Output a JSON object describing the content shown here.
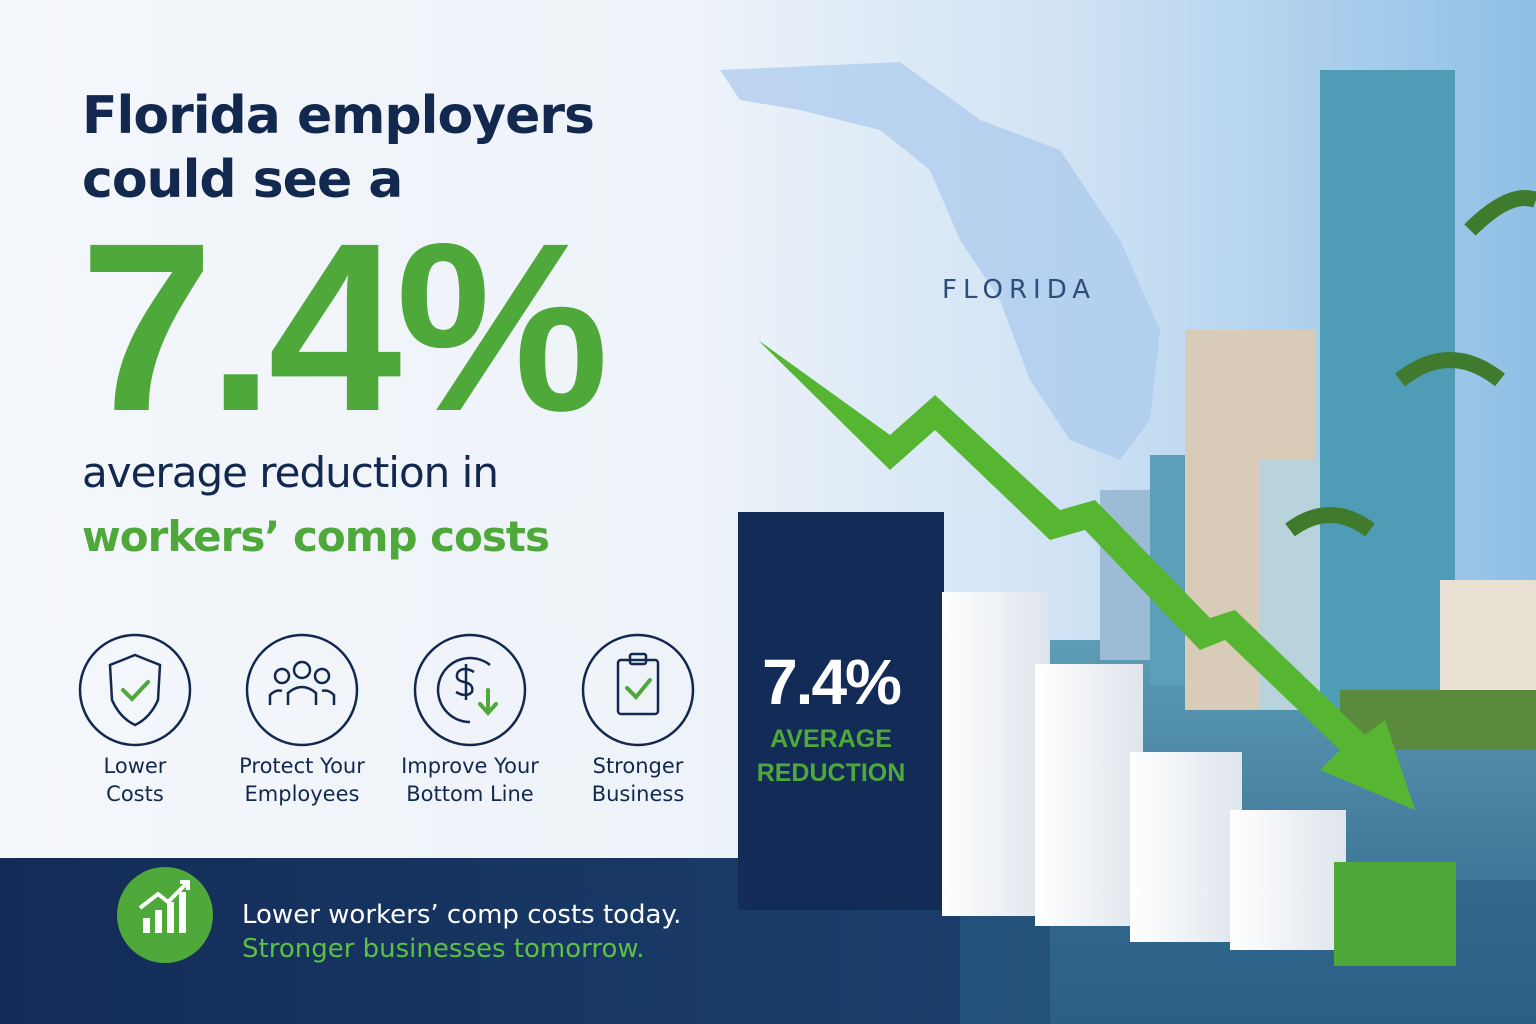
{
  "headline": {
    "lines": [
      "Florida employers",
      "could see a"
    ],
    "figure": "7.4%",
    "subtext": "average reduction in",
    "highlight": "workers’ comp costs"
  },
  "map_label": "FLORIDA",
  "benefits": [
    {
      "lines": [
        "Lower",
        "Costs"
      ]
    },
    {
      "lines": [
        "Protect Your",
        "Employees"
      ]
    },
    {
      "lines": [
        "Improve Your",
        "Bottom Line"
      ]
    },
    {
      "lines": [
        "Stronger",
        "Business"
      ]
    }
  ],
  "callout": {
    "figure": "7.4%",
    "lines": [
      "AVERAGE",
      "REDUCTION"
    ]
  },
  "footer": {
    "lines": [
      "Lower workers’ comp costs today.",
      "Stronger businesses tomorrow."
    ]
  }
}
